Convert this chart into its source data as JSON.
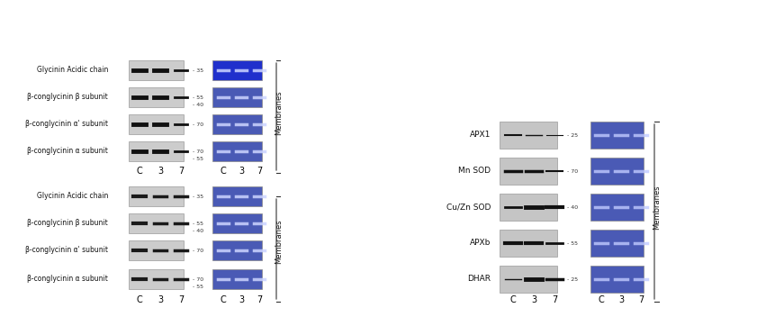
{
  "title": "",
  "background_color": "#ffffff",
  "left_panel": {
    "top_section": {
      "blot_labels": [
        "β-conglycinin α subunit",
        "β-conglycinin α' subunit",
        "β-conglycinin β subunit",
        "Glycinin Acidic chain"
      ],
      "col_labels": [
        "C",
        "3",
        "7"
      ],
      "mw_markers": [
        [
          "70",
          "55"
        ],
        [
          "70"
        ],
        [
          "55",
          "40"
        ],
        [
          "35"
        ]
      ],
      "blot_colors": [
        "#c8c8c8",
        "#d0d0d0",
        "#c8c8c8",
        "#c8c8c8"
      ],
      "mem_label": "Membranes"
    },
    "bottom_section": {
      "blot_labels": [
        "β-conglycinin α subunit",
        "β-conglycinin α' subunit",
        "β-conglycinin β subunit",
        "Glycinin Acidic chain"
      ],
      "col_labels": [
        "C",
        "3",
        "7"
      ],
      "mw_markers": [
        [
          "70",
          "55"
        ],
        [
          "70"
        ],
        [
          "55",
          "40"
        ],
        [
          "35"
        ]
      ],
      "mem_label": "Membranes"
    }
  },
  "right_panel": {
    "blot_labels": [
      "DHAR",
      "APXb",
      "Cu/Zn SOD",
      "Mn SOD",
      "APX1"
    ],
    "col_labels": [
      "C",
      "3",
      "7"
    ],
    "mw_markers": [
      "25",
      "55",
      "40",
      "70",
      "25"
    ],
    "mem_label": "Membranes"
  }
}
